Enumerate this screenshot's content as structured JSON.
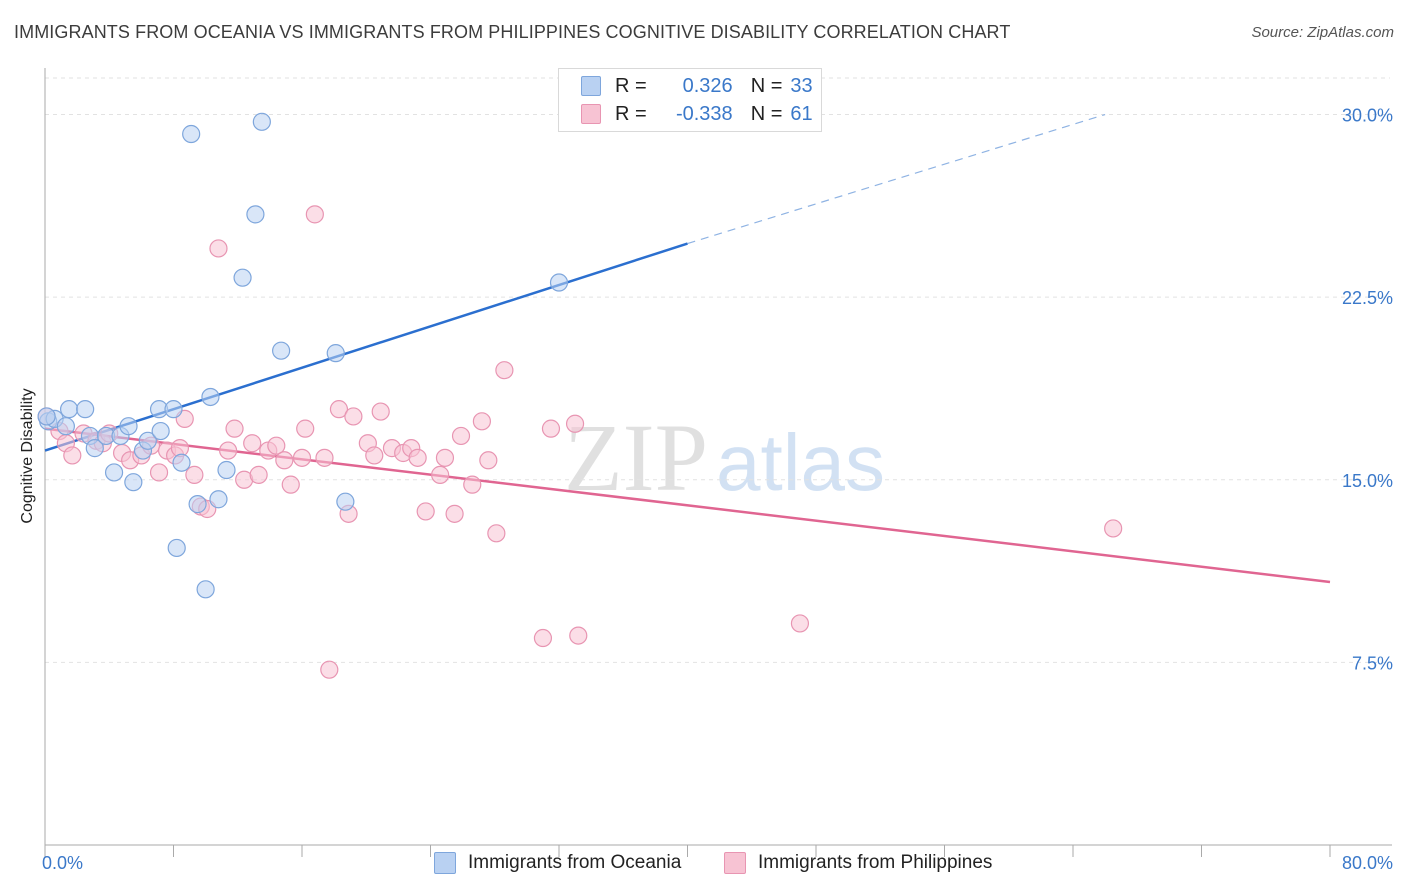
{
  "title": "IMMIGRANTS FROM OCEANIA VS IMMIGRANTS FROM PHILIPPINES COGNITIVE DISABILITY CORRELATION CHART",
  "source": "Source: ZipAtlas.com",
  "watermark": {
    "zip": "ZIP",
    "atlas": "atlas"
  },
  "legend": {
    "series1": {
      "r_label": "R =",
      "r_value": "0.326",
      "n_label": "N =",
      "n_value": "33"
    },
    "series2": {
      "r_label": "R =",
      "r_value": "-0.338",
      "n_label": "N =",
      "n_value": "61"
    }
  },
  "colors": {
    "blue_fill": "#b9d1f2",
    "blue_stroke": "#7ea6dc",
    "blue_line": "#2b6fcf",
    "pink_fill": "#f7c3d3",
    "pink_stroke": "#e895b2",
    "pink_line": "#e06591",
    "tick_text": "#3a78c9",
    "grid": "#e2e2e2"
  },
  "chart_data": {
    "type": "scatter",
    "title": "IMMIGRANTS FROM OCEANIA VS IMMIGRANTS FROM PHILIPPINES COGNITIVE DISABILITY CORRELATION CHART",
    "xlabel": "",
    "ylabel": "Cognitive Disability",
    "xlim": [
      0,
      80
    ],
    "ylim": [
      0,
      31.5
    ],
    "x_tick_labels": [
      "0.0%",
      "80.0%"
    ],
    "y_ticks": [
      7.5,
      15.0,
      22.5,
      30.0
    ],
    "y_tick_labels": [
      "7.5%",
      "15.0%",
      "22.5%",
      "30.0%"
    ],
    "grid": true,
    "legend_position": "top-center",
    "series": [
      {
        "name": "Immigrants from Oceania",
        "color": "#7ea6dc",
        "points": [
          [
            0.2,
            17.4
          ],
          [
            0.6,
            17.5
          ],
          [
            1.3,
            17.2
          ],
          [
            1.5,
            17.9
          ],
          [
            2.5,
            17.9
          ],
          [
            2.8,
            16.8
          ],
          [
            3.1,
            16.3
          ],
          [
            3.8,
            16.8
          ],
          [
            4.3,
            15.3
          ],
          [
            4.7,
            16.8
          ],
          [
            5.2,
            17.2
          ],
          [
            5.5,
            14.9
          ],
          [
            6.1,
            16.2
          ],
          [
            6.4,
            16.6
          ],
          [
            7.1,
            17.9
          ],
          [
            7.2,
            17.0
          ],
          [
            8.0,
            17.9
          ],
          [
            8.2,
            12.2
          ],
          [
            8.5,
            15.7
          ],
          [
            9.1,
            29.2
          ],
          [
            9.5,
            14.0
          ],
          [
            10.0,
            10.5
          ],
          [
            10.3,
            18.4
          ],
          [
            10.8,
            14.2
          ],
          [
            11.3,
            15.4
          ],
          [
            12.3,
            23.3
          ],
          [
            13.1,
            25.9
          ],
          [
            13.5,
            29.7
          ],
          [
            14.7,
            20.3
          ],
          [
            18.1,
            20.2
          ],
          [
            18.7,
            14.1
          ],
          [
            32.0,
            23.1
          ],
          [
            0.1,
            17.6
          ]
        ],
        "trend": {
          "x": [
            0,
            40
          ],
          "y": [
            16.2,
            24.7
          ],
          "dashed_extension": {
            "x": [
              40,
              66
            ],
            "y": [
              24.7,
              30.0
            ]
          }
        }
      },
      {
        "name": "Immigrants from Philippines",
        "color": "#e895b2",
        "points": [
          [
            0.1,
            17.6
          ],
          [
            0.9,
            17.0
          ],
          [
            1.3,
            16.5
          ],
          [
            1.7,
            16.0
          ],
          [
            2.4,
            16.9
          ],
          [
            3.2,
            16.6
          ],
          [
            3.6,
            16.5
          ],
          [
            4.0,
            16.9
          ],
          [
            4.8,
            16.1
          ],
          [
            5.3,
            15.8
          ],
          [
            6.0,
            16.0
          ],
          [
            6.6,
            16.4
          ],
          [
            7.1,
            15.3
          ],
          [
            7.6,
            16.2
          ],
          [
            8.1,
            16.0
          ],
          [
            8.4,
            16.3
          ],
          [
            8.7,
            17.5
          ],
          [
            9.3,
            15.2
          ],
          [
            9.7,
            13.9
          ],
          [
            10.1,
            13.8
          ],
          [
            10.8,
            24.5
          ],
          [
            11.4,
            16.2
          ],
          [
            11.8,
            17.1
          ],
          [
            12.4,
            15.0
          ],
          [
            12.9,
            16.5
          ],
          [
            13.3,
            15.2
          ],
          [
            13.9,
            16.2
          ],
          [
            14.4,
            16.4
          ],
          [
            14.9,
            15.8
          ],
          [
            15.3,
            14.8
          ],
          [
            16.0,
            15.9
          ],
          [
            16.2,
            17.1
          ],
          [
            16.8,
            25.9
          ],
          [
            17.4,
            15.9
          ],
          [
            17.7,
            7.2
          ],
          [
            18.3,
            17.9
          ],
          [
            18.9,
            13.6
          ],
          [
            19.2,
            17.6
          ],
          [
            20.1,
            16.5
          ],
          [
            20.5,
            16.0
          ],
          [
            20.9,
            17.8
          ],
          [
            21.6,
            16.3
          ],
          [
            22.3,
            16.1
          ],
          [
            22.8,
            16.3
          ],
          [
            23.2,
            15.9
          ],
          [
            23.7,
            13.7
          ],
          [
            24.6,
            15.2
          ],
          [
            24.9,
            15.9
          ],
          [
            25.5,
            13.6
          ],
          [
            25.9,
            16.8
          ],
          [
            26.6,
            14.8
          ],
          [
            27.2,
            17.4
          ],
          [
            27.6,
            15.8
          ],
          [
            28.1,
            12.8
          ],
          [
            28.6,
            19.5
          ],
          [
            31.0,
            8.5
          ],
          [
            31.5,
            17.1
          ],
          [
            33.0,
            17.3
          ],
          [
            33.2,
            8.6
          ],
          [
            47.0,
            9.1
          ],
          [
            66.5,
            13.0
          ]
        ],
        "trend": {
          "x": [
            0,
            80
          ],
          "y": [
            17.1,
            10.8
          ]
        }
      }
    ]
  }
}
